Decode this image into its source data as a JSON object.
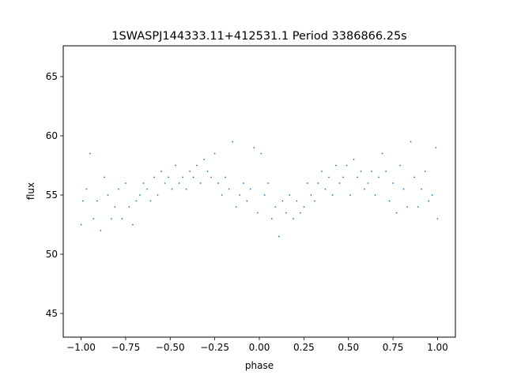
{
  "chart_data": {
    "type": "scatter",
    "title": "1SWASPJ144333.11+412531.1 Period 3386866.25s",
    "xlabel": "phase",
    "ylabel": "flux",
    "xlim": [
      -1.1,
      1.1
    ],
    "ylim": [
      43.0,
      67.6
    ],
    "x_ticks": [
      -1.0,
      -0.75,
      -0.5,
      -0.25,
      0.0,
      0.25,
      0.5,
      0.75,
      1.0
    ],
    "x_tick_labels": [
      "−1.00",
      "−0.75",
      "−0.50",
      "−0.25",
      "0.00",
      "0.25",
      "0.50",
      "0.75",
      "1.00"
    ],
    "y_ticks": [
      45,
      50,
      55,
      60,
      65
    ],
    "y_tick_labels": [
      "45",
      "50",
      "55",
      "60",
      "65"
    ],
    "grid": false,
    "legend": "none",
    "marker_color": "#1f77b4",
    "series": [
      {
        "x": [
          -1.0,
          -0.99,
          -0.97,
          -0.95,
          -0.93,
          -0.91,
          -0.89,
          -0.87,
          -0.85,
          -0.83,
          -0.81,
          -0.79,
          -0.77,
          -0.75,
          -0.73,
          -0.71,
          -0.69,
          -0.67,
          -0.65,
          -0.63,
          -0.61,
          -0.59,
          -0.57,
          -0.55,
          -0.53,
          -0.51,
          -0.49,
          -0.47,
          -0.45,
          -0.43,
          -0.41,
          -0.39,
          -0.37,
          -0.35,
          -0.33,
          -0.31,
          -0.29,
          -0.27,
          -0.25,
          -0.23,
          -0.21,
          -0.19,
          -0.17,
          -0.15,
          -0.13,
          -0.11,
          -0.09,
          -0.07,
          -0.05,
          -0.03,
          -0.01,
          0.01,
          0.03,
          0.05,
          0.07,
          0.09,
          0.11,
          0.13,
          0.15,
          0.17,
          0.19,
          0.21,
          0.23,
          0.25,
          0.27,
          0.29,
          0.31,
          0.33,
          0.35,
          0.37,
          0.39,
          0.41,
          0.43,
          0.45,
          0.47,
          0.49,
          0.51,
          0.53,
          0.55,
          0.57,
          0.59,
          0.61,
          0.63,
          0.65,
          0.67,
          0.69,
          0.71,
          0.73,
          0.75,
          0.77,
          0.79,
          0.81,
          0.83,
          0.85,
          0.87,
          0.89,
          0.91,
          0.93,
          0.95,
          0.97,
          0.99,
          1.0
        ],
        "y": [
          52.5,
          54.5,
          55.5,
          58.5,
          53.0,
          54.5,
          52.0,
          56.5,
          55.0,
          53.0,
          54.0,
          55.5,
          53.0,
          56.0,
          54.0,
          52.5,
          54.5,
          55.0,
          56.0,
          55.5,
          54.5,
          56.5,
          55.0,
          57.0,
          56.0,
          56.5,
          55.5,
          57.5,
          56.0,
          56.5,
          55.5,
          57.0,
          56.5,
          57.5,
          56.0,
          58.0,
          57.0,
          56.5,
          58.5,
          56.0,
          55.0,
          56.5,
          55.5,
          59.5,
          54.0,
          55.0,
          56.0,
          54.5,
          55.5,
          59.0,
          53.5,
          58.5,
          55.0,
          56.0,
          53.0,
          54.0,
          51.5,
          54.5,
          53.5,
          55.0,
          53.0,
          54.5,
          53.5,
          54.0,
          56.0,
          55.0,
          54.5,
          56.0,
          57.0,
          55.5,
          56.5,
          55.0,
          57.5,
          56.0,
          56.5,
          57.5,
          55.0,
          58.0,
          56.5,
          57.0,
          55.5,
          56.0,
          57.0,
          55.0,
          56.5,
          58.5,
          57.0,
          54.5,
          56.0,
          53.5,
          57.5,
          55.5,
          54.0,
          59.5,
          56.5,
          54.0,
          55.5,
          57.0,
          54.5,
          55.0,
          59.0,
          53.0
        ]
      }
    ]
  }
}
